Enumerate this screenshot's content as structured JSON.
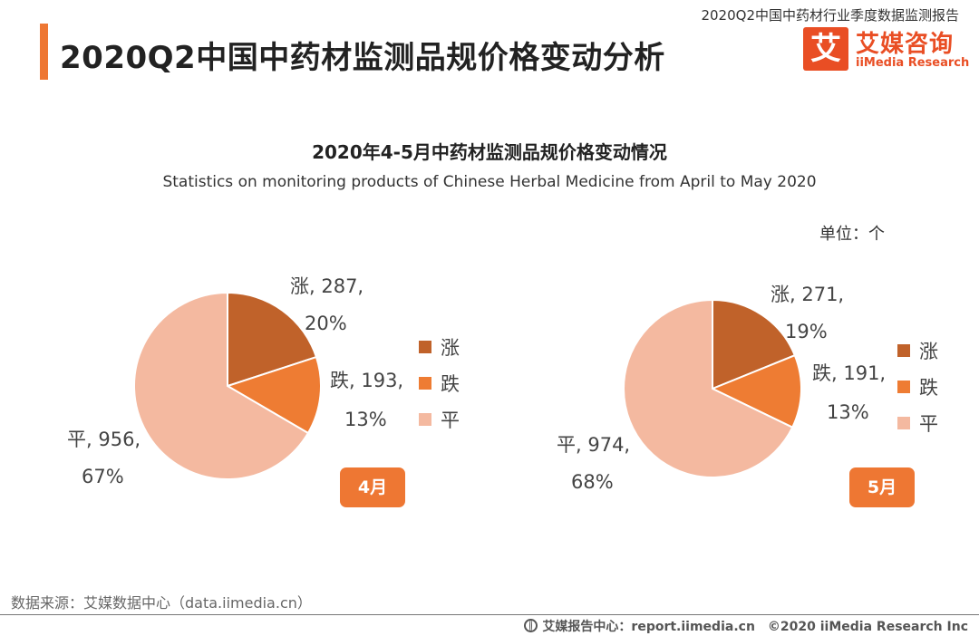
{
  "header": {
    "title": "2020Q2中国中药材监测品规价格变动分析",
    "report_name": "2020Q2中国中药材行业季度数据监测报告",
    "logo_mark": "艾",
    "logo_name": "艾媒咨询",
    "logo_sub": "iiMedia Research"
  },
  "unit_label": "单位：个",
  "colors": {
    "rise": "#c0622a",
    "fall": "#ee7c33",
    "flat": "#f4b9a0",
    "accent": "#ee7733",
    "brand": "#e94e24"
  },
  "chart_data": {
    "type": "pie",
    "title": "2020年4-5月中药材监测品规价格变动情况",
    "subtitle": "Statistics on monitoring products of Chinese Herbal Medicine from April to May 2020",
    "unit": "个",
    "categories": [
      "涨",
      "跌",
      "平"
    ],
    "legend": [
      "涨",
      "跌",
      "平"
    ],
    "pies": [
      {
        "month": "4月",
        "values": [
          287,
          193,
          956
        ],
        "percents": [
          "20%",
          "13%",
          "67%"
        ],
        "labels": [
          {
            "line1": "涨, 287,",
            "line2": "20%"
          },
          {
            "line1": "跌, 193,",
            "line2": "13%"
          },
          {
            "line1": "平, 956,",
            "line2": "67%"
          }
        ]
      },
      {
        "month": "5月",
        "values": [
          271,
          191,
          974
        ],
        "percents": [
          "19%",
          "13%",
          "68%"
        ],
        "labels": [
          {
            "line1": "涨, 271,",
            "line2": "19%"
          },
          {
            "line1": "跌, 191,",
            "line2": "13%"
          },
          {
            "line1": "平, 974,",
            "line2": "68%"
          }
        ]
      }
    ]
  },
  "footer": {
    "source": "数据来源：艾媒数据中心（data.iimedia.cn）",
    "report_center": "艾媒报告中心：report.iimedia.cn",
    "copyright": "©2020  iiMedia Research  Inc"
  }
}
